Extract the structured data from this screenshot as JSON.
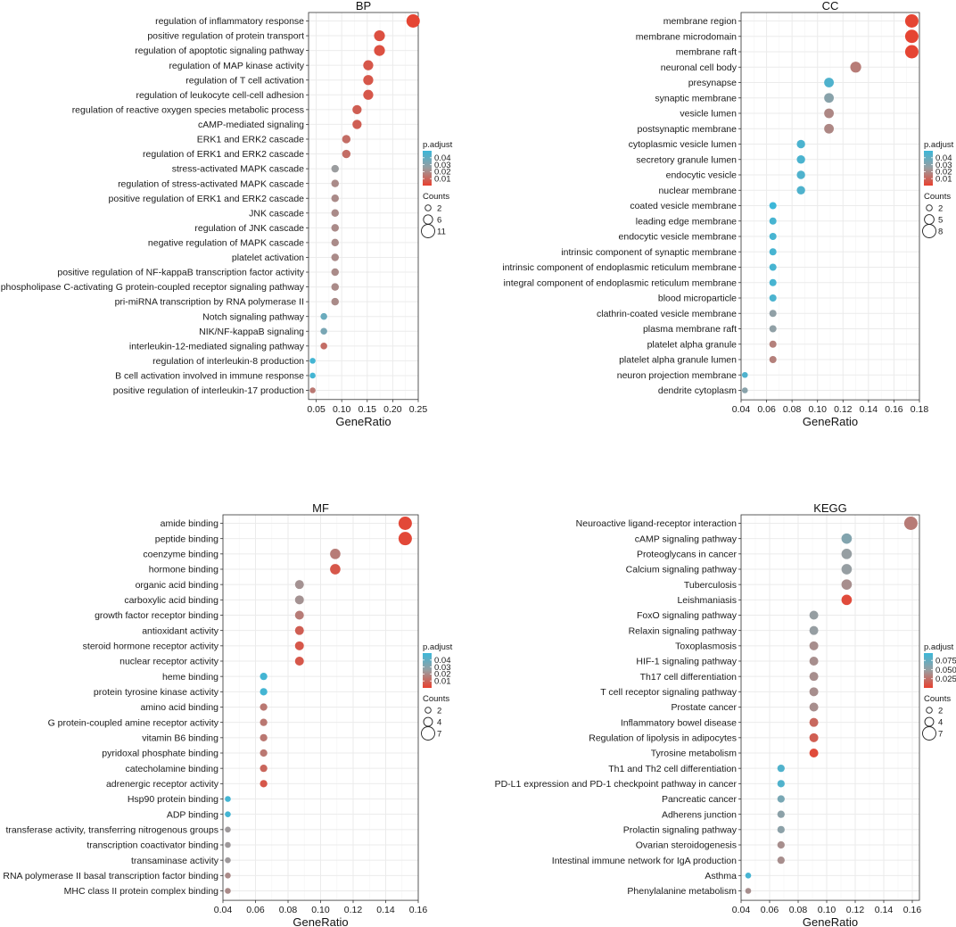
{
  "chart_data": [
    {
      "type": "scatter",
      "title": "BP",
      "xlabel": "GeneRatio",
      "xlim": [
        0.035,
        0.25
      ],
      "xticks": [
        0.05,
        0.1,
        0.15,
        0.2,
        0.25
      ],
      "xtick_labels": [
        "0.05",
        "0.10",
        "0.15",
        "0.20",
        "0.25"
      ],
      "terms": [
        "regulation of inflammatory response",
        "positive regulation of protein transport",
        "regulation of apoptotic signaling pathway",
        "regulation of MAP kinase activity",
        "regulation of T cell activation",
        "regulation of leukocyte cell-cell adhesion",
        "regulation of reactive oxygen species metabolic process",
        "cAMP-mediated signaling",
        "ERK1 and ERK2 cascade",
        "regulation of ERK1 and ERK2 cascade",
        "stress-activated MAPK cascade",
        "regulation of stress-activated MAPK cascade",
        "positive regulation of ERK1 and ERK2 cascade",
        "JNK cascade",
        "regulation of JNK cascade",
        "negative regulation of MAPK cascade",
        "platelet activation",
        "positive regulation of NF-kappaB transcription factor activity",
        "phospholipase C-activating G protein-coupled receptor signaling pathway",
        "pri-miRNA transcription by RNA polymerase II",
        "Notch signaling pathway",
        "NIK/NF-kappaB signaling",
        "interleukin-12-mediated signaling pathway",
        "regulation of interleukin-8 production",
        "B cell activation involved in immune response",
        "positive regulation of interleukin-17 production"
      ],
      "gene_ratio": [
        0.24,
        0.174,
        0.174,
        0.152,
        0.152,
        0.152,
        0.13,
        0.13,
        0.109,
        0.109,
        0.087,
        0.087,
        0.087,
        0.087,
        0.087,
        0.087,
        0.087,
        0.087,
        0.087,
        0.087,
        0.065,
        0.065,
        0.065,
        0.043,
        0.043,
        0.043
      ],
      "count": [
        11,
        8,
        8,
        7,
        7,
        7,
        6,
        6,
        5,
        5,
        4,
        4,
        4,
        4,
        4,
        4,
        4,
        4,
        4,
        4,
        3,
        3,
        3,
        2,
        2,
        2
      ],
      "p_adjust": [
        0.001,
        0.004,
        0.004,
        0.006,
        0.006,
        0.006,
        0.008,
        0.008,
        0.012,
        0.012,
        0.025,
        0.02,
        0.02,
        0.02,
        0.02,
        0.02,
        0.02,
        0.02,
        0.02,
        0.02,
        0.038,
        0.034,
        0.012,
        0.048,
        0.048,
        0.015
      ],
      "color_legend": {
        "title": "p.adjust",
        "ticks": [
          0.04,
          0.03,
          0.02,
          0.01
        ],
        "tick_labels": [
          "0.04",
          "0.03",
          "0.02",
          "0.01"
        ],
        "range": [
          0.0,
          0.05
        ]
      },
      "size_legend": {
        "title": "Counts",
        "values": [
          2,
          6,
          11
        ],
        "labels": [
          "2",
          "6",
          "11"
        ],
        "range": [
          2,
          11
        ]
      }
    },
    {
      "type": "scatter",
      "title": "CC",
      "xlabel": "GeneRatio",
      "xlim": [
        0.04,
        0.18
      ],
      "xticks": [
        0.04,
        0.06,
        0.08,
        0.1,
        0.12,
        0.14,
        0.16,
        0.18
      ],
      "xtick_labels": [
        "0.04",
        "0.06",
        "0.08",
        "0.10",
        "0.12",
        "0.14",
        "0.16",
        "0.18"
      ],
      "terms": [
        "membrane region",
        "membrane microdomain",
        "membrane raft",
        "neuronal cell body",
        "presynapse",
        "synaptic membrane",
        "vesicle lumen",
        "postsynaptic membrane",
        "cytoplasmic vesicle lumen",
        "secretory granule lumen",
        "endocytic vesicle",
        "nuclear membrane",
        "coated vesicle membrane",
        "leading edge membrane",
        "endocytic vesicle membrane",
        "intrinsic component of synaptic membrane",
        "intrinsic component of endoplasmic reticulum membrane",
        "integral component of endoplasmic reticulum membrane",
        "blood microparticle",
        "clathrin-coated vesicle membrane",
        "plasma membrane raft",
        "platelet alpha granule",
        "platelet alpha granule lumen",
        "neuron projection membrane",
        "dendrite cytoplasm"
      ],
      "gene_ratio": [
        0.174,
        0.174,
        0.174,
        0.13,
        0.109,
        0.109,
        0.109,
        0.109,
        0.087,
        0.087,
        0.087,
        0.087,
        0.065,
        0.065,
        0.065,
        0.065,
        0.065,
        0.065,
        0.065,
        0.065,
        0.065,
        0.065,
        0.065,
        0.043,
        0.043
      ],
      "count": [
        8,
        8,
        8,
        6,
        5,
        5,
        5,
        5,
        4,
        4,
        4,
        4,
        3,
        3,
        3,
        3,
        3,
        3,
        3,
        3,
        3,
        3,
        3,
        2,
        2
      ],
      "p_adjust": [
        0.001,
        0.001,
        0.001,
        0.016,
        0.045,
        0.03,
        0.019,
        0.019,
        0.046,
        0.046,
        0.045,
        0.045,
        0.05,
        0.047,
        0.047,
        0.047,
        0.047,
        0.047,
        0.046,
        0.028,
        0.028,
        0.017,
        0.017,
        0.045,
        0.03
      ],
      "color_legend": {
        "title": "p.adjust",
        "ticks": [
          0.04,
          0.03,
          0.02,
          0.01
        ],
        "tick_labels": [
          "0.04",
          "0.03",
          "0.02",
          "0.01"
        ],
        "range": [
          0.0,
          0.05
        ]
      },
      "size_legend": {
        "title": "Counts",
        "values": [
          2,
          5,
          8
        ],
        "labels": [
          "2",
          "5",
          "8"
        ],
        "range": [
          2,
          8
        ]
      }
    },
    {
      "type": "scatter",
      "title": "MF",
      "xlabel": "GeneRatio",
      "xlim": [
        0.04,
        0.16
      ],
      "xticks": [
        0.04,
        0.06,
        0.08,
        0.1,
        0.12,
        0.14,
        0.16
      ],
      "xtick_labels": [
        "0.04",
        "0.06",
        "0.08",
        "0.10",
        "0.12",
        "0.14",
        "0.16"
      ],
      "terms": [
        "amide binding",
        "peptide binding",
        "coenzyme binding",
        "hormone binding",
        "organic acid binding",
        "carboxylic acid binding",
        "growth factor receptor binding",
        "antioxidant activity",
        "steroid hormone receptor activity",
        "nuclear receptor activity",
        "heme binding",
        "protein tyrosine kinase activity",
        "amino acid binding",
        "G protein-coupled amine receptor activity",
        "vitamin B6 binding",
        "pyridoxal phosphate binding",
        "catecholamine binding",
        "adrenergic receptor activity",
        "Hsp90 protein binding",
        "ADP binding",
        "transferase activity, transferring nitrogenous groups",
        "transcription coactivator binding",
        "transaminase activity",
        "RNA polymerase II basal transcription factor binding",
        "MHC class II protein complex binding"
      ],
      "gene_ratio": [
        0.152,
        0.152,
        0.109,
        0.109,
        0.087,
        0.087,
        0.087,
        0.087,
        0.087,
        0.087,
        0.065,
        0.065,
        0.065,
        0.065,
        0.065,
        0.065,
        0.065,
        0.065,
        0.043,
        0.043,
        0.043,
        0.043,
        0.043,
        0.043,
        0.043
      ],
      "count": [
        7,
        7,
        5,
        5,
        4,
        4,
        4,
        4,
        4,
        4,
        3,
        3,
        3,
        3,
        3,
        3,
        3,
        3,
        2,
        2,
        2,
        2,
        2,
        2,
        2
      ],
      "p_adjust": [
        0.002,
        0.002,
        0.016,
        0.006,
        0.022,
        0.022,
        0.016,
        0.008,
        0.006,
        0.006,
        0.048,
        0.048,
        0.015,
        0.015,
        0.015,
        0.015,
        0.01,
        0.006,
        0.048,
        0.048,
        0.024,
        0.024,
        0.024,
        0.02,
        0.02
      ],
      "color_legend": {
        "title": "p.adjust",
        "ticks": [
          0.04,
          0.03,
          0.02,
          0.01
        ],
        "tick_labels": [
          "0.04",
          "0.03",
          "0.02",
          "0.01"
        ],
        "range": [
          0.0,
          0.05
        ]
      },
      "size_legend": {
        "title": "Counts",
        "values": [
          2,
          4,
          7
        ],
        "labels": [
          "2",
          "4",
          "7"
        ],
        "range": [
          2,
          7
        ]
      }
    },
    {
      "type": "scatter",
      "title": "KEGG",
      "xlabel": "GeneRatio",
      "xlim": [
        0.04,
        0.165
      ],
      "xticks": [
        0.04,
        0.06,
        0.08,
        0.1,
        0.12,
        0.14,
        0.16
      ],
      "xtick_labels": [
        "0.04",
        "0.06",
        "0.08",
        "0.10",
        "0.12",
        "0.14",
        "0.16"
      ],
      "terms": [
        "Neuroactive ligand-receptor interaction",
        "cAMP signaling pathway",
        "Proteoglycans in cancer",
        "Calcium signaling pathway",
        "Tuberculosis",
        "Leishmaniasis",
        "FoxO signaling pathway",
        "Relaxin signaling pathway",
        "Toxoplasmosis",
        "HIF-1 signaling pathway",
        "Th17 cell differentiation",
        "T cell receptor signaling pathway",
        "Prostate cancer",
        "Inflammatory bowel disease",
        "Regulation of lipolysis in adipocytes",
        "Tyrosine metabolism",
        "Th1 and Th2 cell differentiation",
        "PD-L1 expression and PD-1 checkpoint pathway in cancer",
        "Pancreatic cancer",
        "Adherens junction",
        "Prolactin signaling pathway",
        "Ovarian steroidogenesis",
        "Intestinal immune network for IgA production",
        "Asthma",
        "Phenylalanine metabolism"
      ],
      "gene_ratio": [
        0.159,
        0.114,
        0.114,
        0.114,
        0.114,
        0.114,
        0.091,
        0.091,
        0.091,
        0.091,
        0.091,
        0.091,
        0.091,
        0.091,
        0.091,
        0.091,
        0.068,
        0.068,
        0.068,
        0.068,
        0.068,
        0.068,
        0.068,
        0.045,
        0.045
      ],
      "count": [
        7,
        5,
        5,
        5,
        5,
        5,
        4,
        4,
        4,
        4,
        4,
        4,
        4,
        4,
        4,
        4,
        3,
        3,
        3,
        3,
        3,
        3,
        3,
        2,
        2
      ],
      "p_adjust": [
        0.03,
        0.06,
        0.05,
        0.05,
        0.04,
        0.005,
        0.05,
        0.05,
        0.04,
        0.04,
        0.04,
        0.04,
        0.04,
        0.02,
        0.015,
        0.005,
        0.085,
        0.085,
        0.065,
        0.055,
        0.055,
        0.04,
        0.04,
        0.09,
        0.04
      ],
      "color_legend": {
        "title": "p.adjust",
        "ticks": [
          0.075,
          0.05,
          0.025
        ],
        "tick_labels": [
          "0.075",
          "0.050",
          "0.025"
        ],
        "range": [
          0.0,
          0.095
        ]
      },
      "size_legend": {
        "title": "Counts",
        "values": [
          2,
          4,
          7
        ],
        "labels": [
          "2",
          "4",
          "7"
        ],
        "range": [
          2,
          7
        ]
      }
    }
  ],
  "colors": {
    "low_p": "#e8412f",
    "mid_p": "#9b9d9f",
    "high_p": "#3cb7d8",
    "grid": "#ebebeb",
    "axis": "#333333"
  }
}
